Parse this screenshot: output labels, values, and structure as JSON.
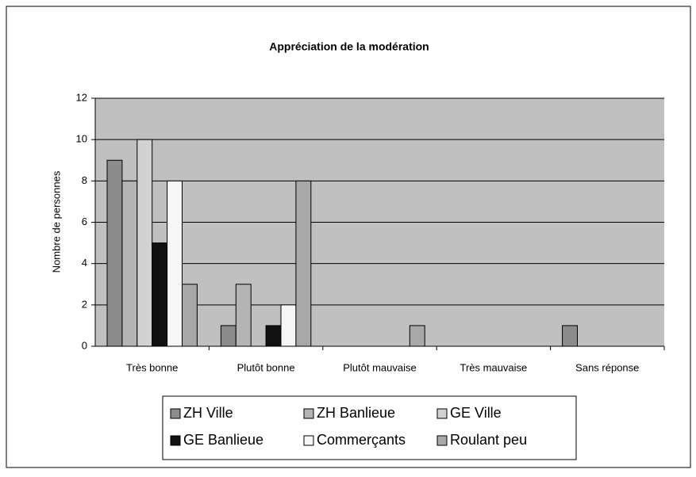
{
  "chart_data": {
    "type": "bar",
    "title": "Appréciation de la modération",
    "y_label": "Nombre de personnes",
    "categories": [
      "Très bonne",
      "Plutôt bonne",
      "Plutôt mauvaise",
      "Très mauvaise",
      "Sans réponse"
    ],
    "series": [
      {
        "name": "ZH Ville",
        "color": "#8c8c8c",
        "values": [
          9,
          1,
          0,
          0,
          1
        ]
      },
      {
        "name": "ZH Banlieue",
        "color": "#b4b4b4",
        "values": [
          8,
          3,
          0,
          0,
          0
        ]
      },
      {
        "name": "GE Ville",
        "color": "#d2d2d2",
        "values": [
          10,
          0,
          0,
          0,
          0
        ]
      },
      {
        "name": "GE Banlieue",
        "color": "#111111",
        "values": [
          5,
          1,
          0,
          0,
          0
        ]
      },
      {
        "name": "Commerçants",
        "color": "#f6f6f6",
        "values": [
          8,
          2,
          0,
          0,
          0
        ]
      },
      {
        "name": "Roulant peu",
        "color": "#a8a8a8",
        "values": [
          3,
          8,
          1,
          0,
          0
        ]
      }
    ],
    "ylim": [
      0,
      12
    ],
    "yticks": [
      0,
      2,
      4,
      6,
      8,
      10,
      12
    ],
    "grid": true,
    "legend": "bottom"
  }
}
